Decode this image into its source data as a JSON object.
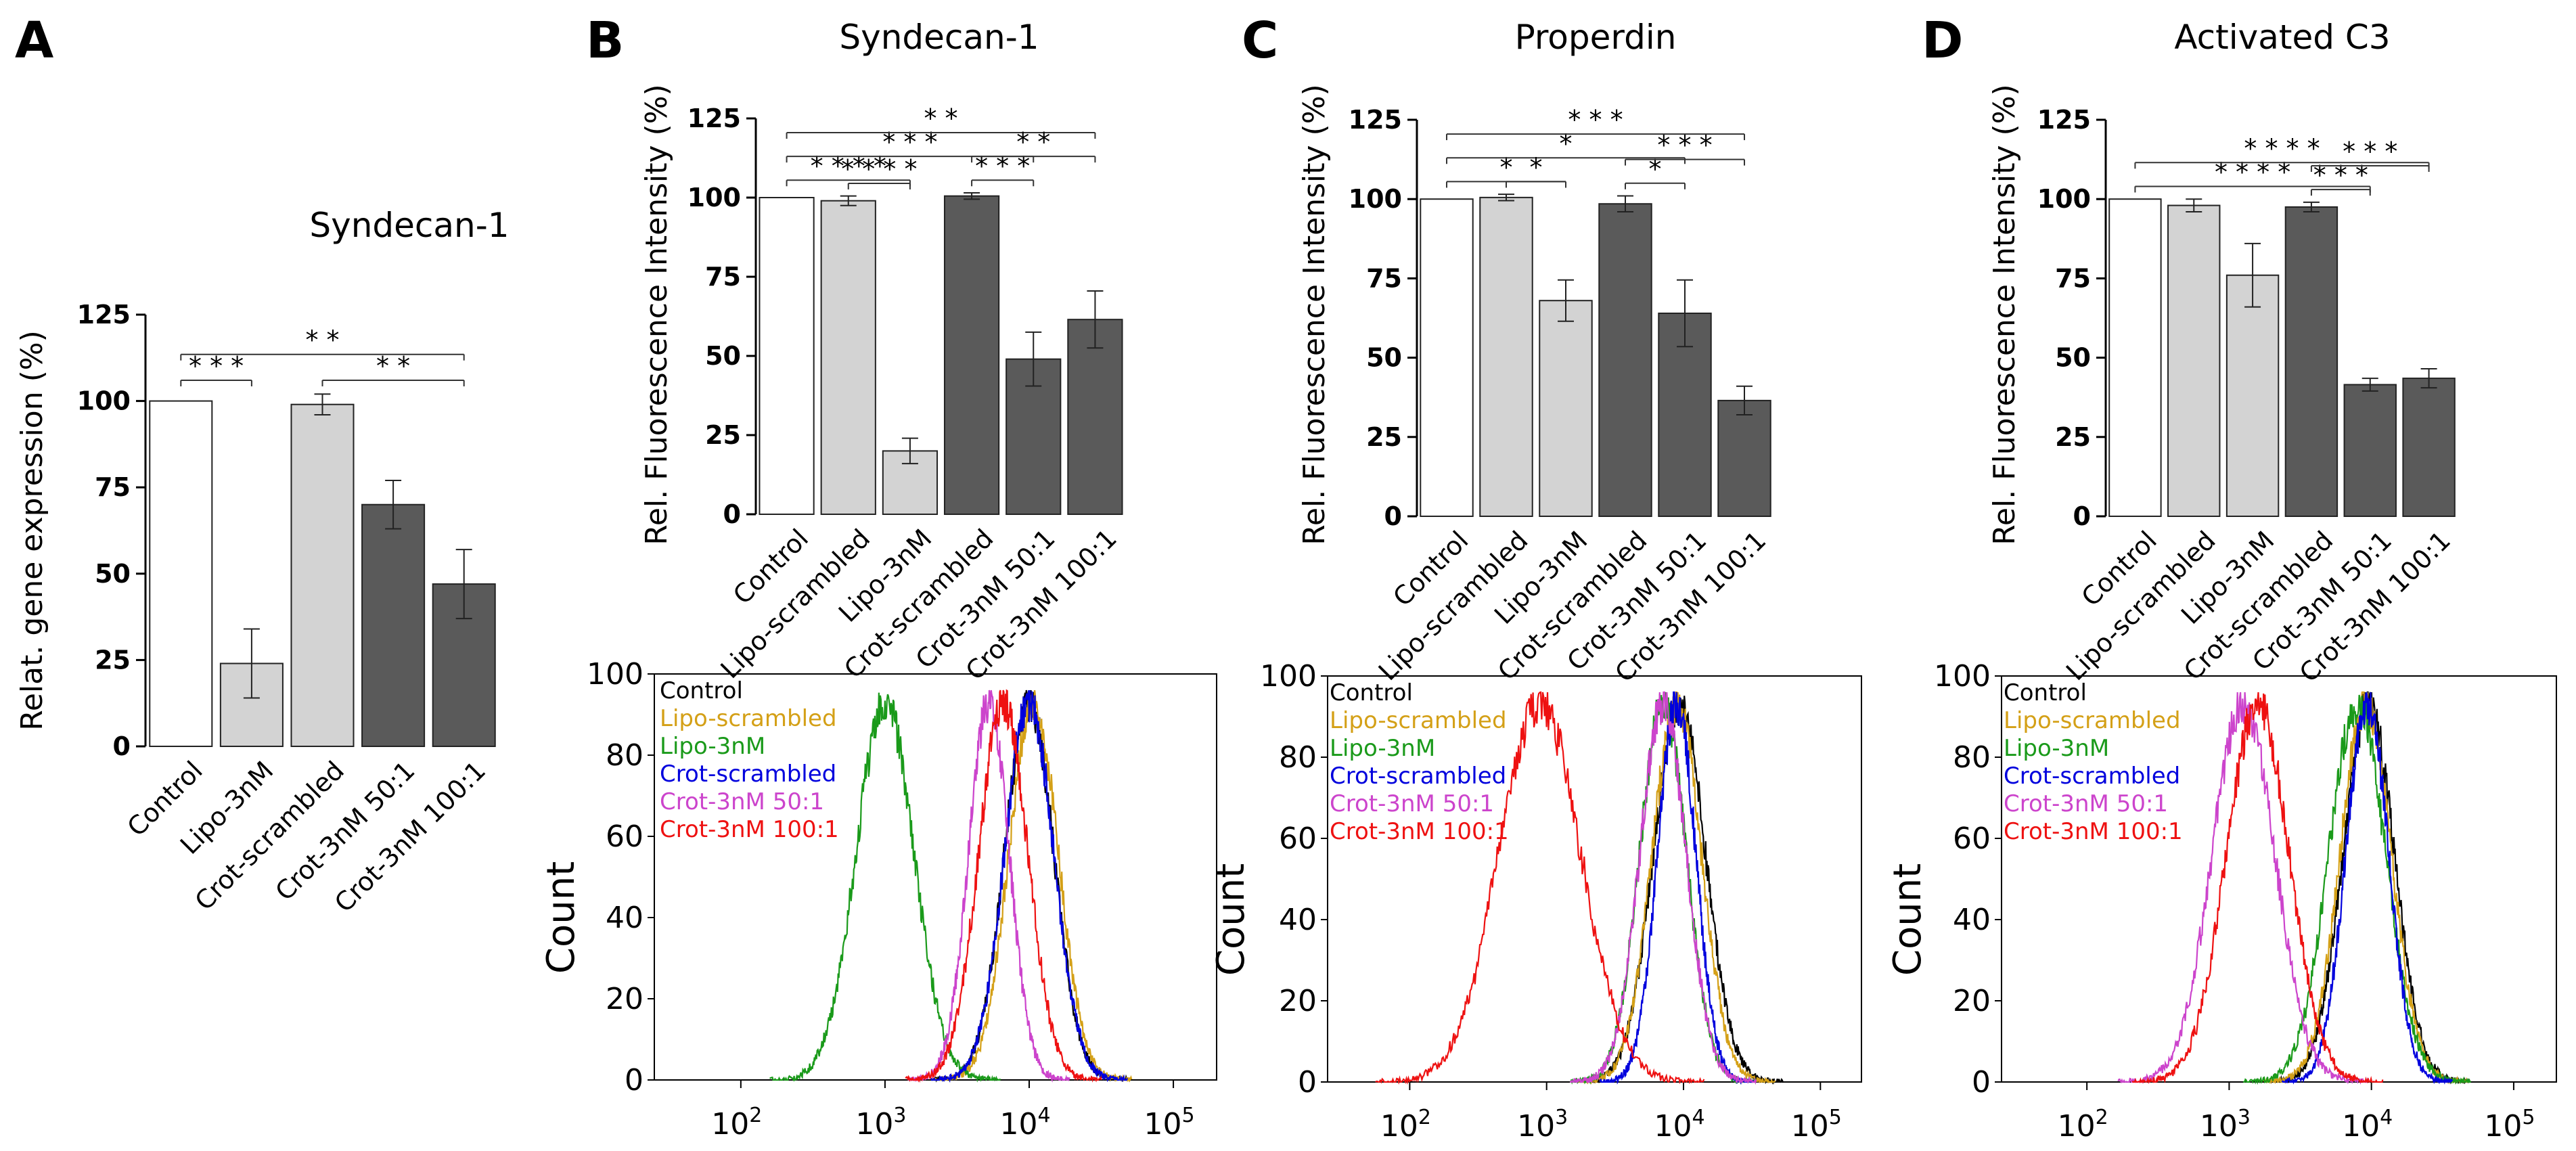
{
  "panel_letters": [
    "A",
    "B",
    "C",
    "D"
  ],
  "legend": {
    "labels": [
      "Control",
      "Lipo-scrambled",
      "Lipo-3nM",
      "Crot-scrambled",
      "Crot-3nM 50:1",
      "Crot-3nM 100:1"
    ],
    "colors": [
      "#000000",
      "#d4a017",
      "#1a9a1a",
      "#0000dd",
      "#cc44cc",
      "#ee1111"
    ]
  },
  "bar_colors": {
    "white": "#ffffff",
    "light": "#d3d3d3",
    "dark": "#5a5a5a"
  },
  "chart_data": [
    {
      "id": "A",
      "type": "bar",
      "title": "Syndecan-1",
      "ylabel": "Relat. gene expression  (%)",
      "categories": [
        "Control",
        "Lipo-3nM",
        "Crot-scrambled",
        "Crot-3nM 50:1",
        "Crot-3nM 100:1"
      ],
      "values": [
        100,
        24,
        99,
        70,
        47
      ],
      "errors": [
        0,
        10,
        3,
        7,
        10
      ],
      "fills": [
        "white",
        "light",
        "light",
        "dark",
        "dark"
      ],
      "ylim": [
        0,
        125
      ],
      "yticks": [
        "0",
        "25",
        "50",
        "75",
        "100",
        "125"
      ],
      "significance": [
        {
          "from": 0,
          "to": 1,
          "label": "* * *"
        },
        {
          "from": 0,
          "to": 4,
          "label": "* *"
        },
        {
          "from": 2,
          "to": 4,
          "label": "* *"
        }
      ]
    },
    {
      "id": "B",
      "type": "bar",
      "title": "Syndecan-1",
      "ylabel": "Rel.  Fluorescence Intensity (%)",
      "categories": [
        "Control",
        "Lipo-scrambled",
        "Lipo-3nM",
        "Crot-scrambled",
        "Crot-3nM 50:1",
        "Crot-3nM 100:1"
      ],
      "values": [
        100,
        99,
        20,
        100.5,
        49,
        61.5
      ],
      "errors": [
        0,
        1.5,
        4,
        1,
        8.5,
        9
      ],
      "fills": [
        "white",
        "light",
        "light",
        "dark",
        "dark",
        "dark"
      ],
      "ylim": [
        0,
        125
      ],
      "yticks": [
        "0",
        "25",
        "50",
        "75",
        "100",
        "125"
      ],
      "significance": [
        {
          "from": 0,
          "to": 5,
          "label": "* *"
        },
        {
          "from": 0,
          "to": 4,
          "label": "* * *"
        },
        {
          "from": 0,
          "to": 2,
          "label": "* * * *"
        },
        {
          "from": 1,
          "to": 2,
          "label": "* * * *"
        },
        {
          "from": 3,
          "to": 5,
          "label": "* *"
        },
        {
          "from": 3,
          "to": 4,
          "label": "* * *"
        }
      ]
    },
    {
      "id": "C",
      "type": "bar",
      "title": "Properdin",
      "ylabel": "Rel.  Fluorescence Intensity (%)",
      "categories": [
        "Control",
        "Lipo-scrambled",
        "Lipo-3nM",
        "Crot-scrambled",
        "Crot-3nM 50:1",
        "Crot-3nM 100:1"
      ],
      "values": [
        100,
        100.5,
        68,
        98.5,
        64,
        36.5
      ],
      "errors": [
        0,
        1,
        6.5,
        2.5,
        10.5,
        4.5
      ],
      "fills": [
        "white",
        "light",
        "light",
        "dark",
        "dark",
        "dark"
      ],
      "ylim": [
        0,
        125
      ],
      "yticks": [
        "0",
        "25",
        "50",
        "75",
        "100",
        "125"
      ],
      "significance": [
        {
          "from": 0,
          "to": 5,
          "label": "* * *"
        },
        {
          "from": 0,
          "to": 4,
          "label": "*"
        },
        {
          "from": 0,
          "to": 2,
          "label": "*"
        },
        {
          "from": 1,
          "to": 2,
          "label": "*"
        },
        {
          "from": 3,
          "to": 5,
          "label": "* * *"
        },
        {
          "from": 3,
          "to": 4,
          "label": "*"
        }
      ]
    },
    {
      "id": "D",
      "type": "bar",
      "title": "Activated C3",
      "ylabel": "Rel.  Fluorescence Intensity (%)",
      "categories": [
        "Control",
        "Lipo-scrambled",
        "Lipo-3nM",
        "Crot-scrambled",
        "Crot-3nM 50:1",
        "Crot-3nM 100:1"
      ],
      "values": [
        100,
        98,
        76,
        97.5,
        41.5,
        43.5
      ],
      "errors": [
        0,
        2,
        10,
        1.5,
        2,
        3
      ],
      "fills": [
        "white",
        "light",
        "light",
        "dark",
        "dark",
        "dark"
      ],
      "ylim": [
        0,
        125
      ],
      "yticks": [
        "0",
        "25",
        "50",
        "75",
        "100",
        "125"
      ],
      "significance": [
        {
          "from": 0,
          "to": 5,
          "label": "* * * *"
        },
        {
          "from": 0,
          "to": 4,
          "label": "* * * *"
        },
        {
          "from": 3,
          "to": 5,
          "label": "* * *"
        },
        {
          "from": 3,
          "to": 4,
          "label": "* * *"
        }
      ]
    },
    {
      "id": "B-hist",
      "type": "line",
      "ylabel": "Count",
      "xscale": "log",
      "xlim": [
        1.4,
        5.3
      ],
      "ylim": [
        0,
        100
      ],
      "yticks": [
        "0",
        "20",
        "40",
        "60",
        "80",
        "100"
      ],
      "xticks": [
        {
          "base": "10",
          "exp": "2"
        },
        {
          "base": "10",
          "exp": "3"
        },
        {
          "base": "10",
          "exp": "4"
        },
        {
          "base": "10",
          "exp": "5"
        }
      ],
      "series": [
        {
          "name": "Control",
          "mu": 4.0,
          "sigma": 0.17
        },
        {
          "name": "Lipo-scrambled",
          "mu": 4.03,
          "sigma": 0.17
        },
        {
          "name": "Lipo-3nM",
          "mu": 3.0,
          "sigma": 0.2
        },
        {
          "name": "Crot-scrambled",
          "mu": 4.0,
          "sigma": 0.17
        },
        {
          "name": "Crot-3nM 50:1",
          "mu": 3.72,
          "sigma": 0.14
        },
        {
          "name": "Crot-3nM 100:1",
          "mu": 3.82,
          "sigma": 0.17
        }
      ]
    },
    {
      "id": "C-hist",
      "type": "line",
      "ylabel": "Count",
      "xscale": "log",
      "xlim": [
        1.4,
        5.3
      ],
      "ylim": [
        0,
        100
      ],
      "yticks": [
        "0",
        "20",
        "40",
        "60",
        "80",
        "100"
      ],
      "xticks": [
        {
          "base": "10",
          "exp": "2"
        },
        {
          "base": "10",
          "exp": "3"
        },
        {
          "base": "10",
          "exp": "4"
        },
        {
          "base": "10",
          "exp": "5"
        }
      ],
      "series": [
        {
          "name": "Control",
          "mu": 3.97,
          "sigma": 0.19
        },
        {
          "name": "Lipo-scrambled",
          "mu": 3.95,
          "sigma": 0.18
        },
        {
          "name": "Lipo-3nM",
          "mu": 3.85,
          "sigma": 0.17
        },
        {
          "name": "Crot-scrambled",
          "mu": 3.95,
          "sigma": 0.14
        },
        {
          "name": "Crot-3nM 50:1",
          "mu": 3.85,
          "sigma": 0.17
        },
        {
          "name": "Crot-3nM 100:1",
          "mu": 2.95,
          "sigma": 0.3
        }
      ]
    },
    {
      "id": "D-hist",
      "type": "line",
      "ylabel": "Count",
      "xscale": "log",
      "xlim": [
        1.4,
        5.3
      ],
      "ylim": [
        0,
        100
      ],
      "yticks": [
        "0",
        "20",
        "40",
        "60",
        "80",
        "100"
      ],
      "xticks": [
        {
          "base": "10",
          "exp": "2"
        },
        {
          "base": "10",
          "exp": "3"
        },
        {
          "base": "10",
          "exp": "4"
        },
        {
          "base": "10",
          "exp": "5"
        }
      ],
      "series": [
        {
          "name": "Control",
          "mu": 3.98,
          "sigma": 0.18
        },
        {
          "name": "Lipo-scrambled",
          "mu": 3.96,
          "sigma": 0.18
        },
        {
          "name": "Lipo-3nM",
          "mu": 3.9,
          "sigma": 0.2
        },
        {
          "name": "Crot-scrambled",
          "mu": 3.97,
          "sigma": 0.15
        },
        {
          "name": "Crot-3nM 50:1",
          "mu": 3.1,
          "sigma": 0.22
        },
        {
          "name": "Crot-3nM 100:1",
          "mu": 3.2,
          "sigma": 0.22
        }
      ]
    }
  ]
}
